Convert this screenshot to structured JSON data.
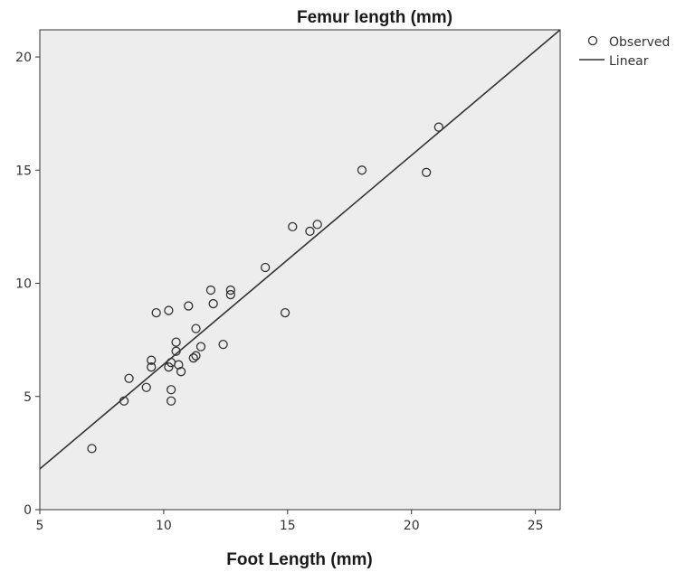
{
  "chart_data": {
    "type": "scatter",
    "title": "Femur length (mm)",
    "xlabel": "Foot Length (mm)",
    "ylabel": "",
    "xlim": [
      5,
      26
    ],
    "ylim": [
      0,
      21.2
    ],
    "xticks": [
      5,
      10,
      15,
      20,
      25
    ],
    "yticks": [
      0,
      5,
      10,
      15,
      20
    ],
    "grid": false,
    "legend_position": "top-right outside",
    "colors": {
      "plot_background": "#ededed",
      "marker": "#333333",
      "fit_line": "#333333"
    },
    "series": [
      {
        "name": "Observed",
        "kind": "points",
        "x": [
          7.1,
          8.4,
          8.6,
          9.3,
          9.5,
          9.5,
          9.7,
          10.2,
          10.2,
          10.3,
          10.3,
          10.3,
          10.5,
          10.5,
          10.6,
          10.7,
          11.0,
          11.2,
          11.3,
          11.3,
          11.5,
          11.9,
          12.0,
          12.4,
          12.7,
          12.7,
          14.1,
          14.9,
          15.2,
          15.9,
          16.2,
          18.0,
          20.6,
          21.1
        ],
        "y": [
          2.7,
          4.8,
          5.8,
          5.4,
          6.3,
          6.6,
          8.7,
          6.3,
          8.8,
          4.8,
          5.3,
          6.5,
          7.0,
          7.4,
          6.4,
          6.1,
          9.0,
          6.7,
          6.8,
          8.0,
          7.2,
          9.7,
          9.1,
          7.3,
          9.5,
          9.7,
          10.7,
          8.7,
          12.5,
          12.3,
          12.6,
          15.0,
          14.9,
          16.9
        ]
      },
      {
        "name": "Linear",
        "kind": "fit-line",
        "x": [
          5,
          26
        ],
        "y": [
          1.8,
          21.2
        ]
      }
    ]
  }
}
